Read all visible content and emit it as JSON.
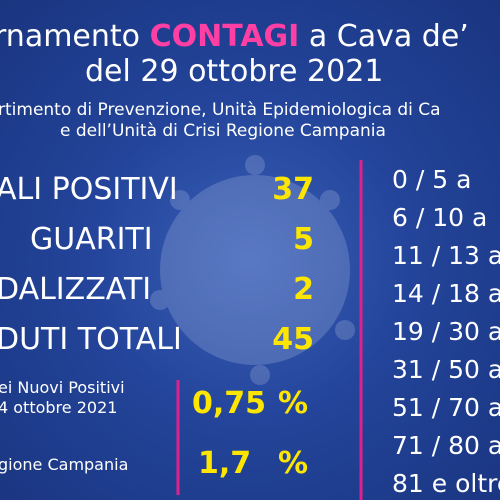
{
  "header": {
    "title_start": "rnamento",
    "title_highlight": "CONTAGI",
    "title_end": "a Cava de’",
    "date": "del 29 ottobre 2021",
    "subtitle": [
      "rtimento di Prevenzione, Unità Epidemiologica di Ca",
      "e dell’Unità di Crisi Regione Campania"
    ]
  },
  "rows": [
    {
      "label": "ALI POSITIVI",
      "value": 37
    },
    {
      "label": "GUARITI",
      "value": 5
    },
    {
      "label": "DALIZZATI",
      "value": 2
    },
    {
      "label": "DUTI TOTALI",
      "value": 45
    }
  ],
  "rates": [
    {
      "label": [
        "ei Nuovi Positivi",
        "4 ottobre 2021"
      ],
      "value": "0,75",
      "unit": "%"
    },
    {
      "label": [
        "gione Campania"
      ],
      "value": "1,7",
      "unit": "%"
    }
  ],
  "age_groups": [
    "0  /  5 a",
    "6  /  10 a",
    "11  /  13 a",
    "14 / 18  a",
    "19 / 30 a",
    "31 / 50 a",
    "51 / 70 a",
    "71 / 80 a",
    "81 e oltre"
  ]
}
